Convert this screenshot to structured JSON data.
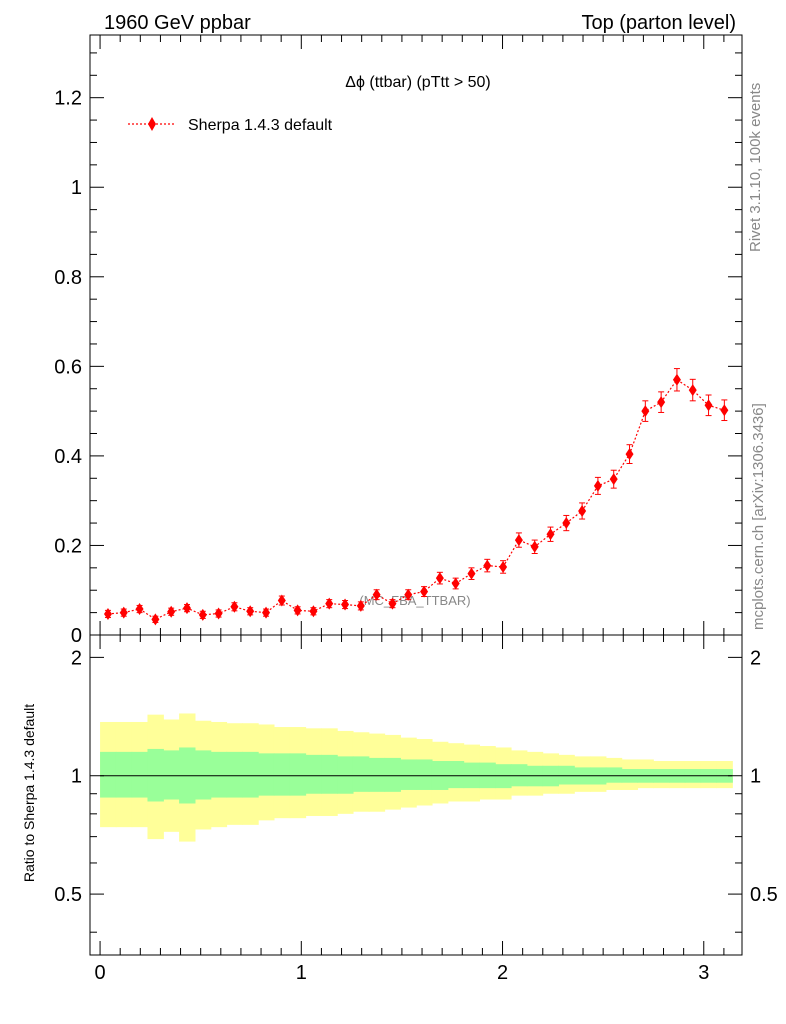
{
  "header": {
    "left_title": "1960 GeV ppbar",
    "right_title": "Top (parton level)"
  },
  "side_labels": {
    "rivet": "Rivet 3.1.10,  100k events",
    "mcplots": "mcplots.cern.ch [arXiv:1306.3436]"
  },
  "chart_data": [
    {
      "type": "scatter",
      "panel": "main",
      "title": "Δϕ (ttbar) (pTtt > 50)",
      "xlabel": "",
      "ylabel": "",
      "xlim": [
        -0.05,
        3.19
      ],
      "ylim": [
        0,
        1.34
      ],
      "grid": false,
      "legend_position": "top-left",
      "watermark": "(MC_FBA_TTBAR)",
      "yticks": [
        {
          "value": 0,
          "label": "0"
        },
        {
          "value": 0.2,
          "label": "0.2"
        },
        {
          "value": 0.4,
          "label": "0.4"
        },
        {
          "value": 0.6,
          "label": "0.6"
        },
        {
          "value": 0.8,
          "label": "0.8"
        },
        {
          "value": 1,
          "label": "1"
        },
        {
          "value": 1.2,
          "label": "1.2"
        }
      ],
      "series": [
        {
          "name": "Sherpa 1.4.3 default",
          "color": "#ff0000",
          "x": [
            0.0393,
            0.1178,
            0.1963,
            0.2749,
            0.3534,
            0.432,
            0.5105,
            0.589,
            0.6676,
            0.7461,
            0.8247,
            0.9032,
            0.9817,
            1.0603,
            1.1388,
            1.2174,
            1.2959,
            1.3744,
            1.453,
            1.5315,
            1.6101,
            1.6886,
            1.7671,
            1.8457,
            1.9242,
            2.0028,
            2.0813,
            2.1598,
            2.2384,
            2.3169,
            2.3955,
            2.474,
            2.5525,
            2.6311,
            2.7096,
            2.7882,
            2.8667,
            2.9452,
            3.0238,
            3.1023
          ],
          "y": [
            0.047,
            0.05,
            0.058,
            0.035,
            0.052,
            0.06,
            0.045,
            0.048,
            0.063,
            0.053,
            0.05,
            0.077,
            0.055,
            0.053,
            0.07,
            0.068,
            0.065,
            0.09,
            0.07,
            0.09,
            0.097,
            0.127,
            0.115,
            0.137,
            0.155,
            0.152,
            0.212,
            0.197,
            0.225,
            0.25,
            0.277,
            0.333,
            0.348,
            0.404,
            0.5,
            0.52,
            0.57,
            0.547,
            0.513,
            0.502
          ],
          "yerr": [
            0.008,
            0.008,
            0.008,
            0.007,
            0.008,
            0.008,
            0.008,
            0.008,
            0.009,
            0.008,
            0.008,
            0.01,
            0.008,
            0.008,
            0.009,
            0.009,
            0.009,
            0.011,
            0.009,
            0.011,
            0.011,
            0.013,
            0.012,
            0.013,
            0.014,
            0.014,
            0.016,
            0.015,
            0.016,
            0.017,
            0.018,
            0.019,
            0.02,
            0.021,
            0.023,
            0.023,
            0.025,
            0.024,
            0.023,
            0.023
          ]
        }
      ]
    },
    {
      "type": "area",
      "panel": "ratio",
      "xlabel": "",
      "ylabel": "Ratio to Sherpa 1.4.3 default",
      "xlim": [
        -0.05,
        3.19
      ],
      "ylim": [
        0.35,
        2.28
      ],
      "log_y": true,
      "grid": false,
      "reference_line": 1,
      "yticks": [
        {
          "value": 0.5,
          "label": "0.5"
        },
        {
          "value": 1,
          "label": "1"
        },
        {
          "value": 2,
          "label": "2"
        }
      ],
      "xticks": [
        {
          "value": 0,
          "label": "0"
        },
        {
          "value": 1,
          "label": "1"
        },
        {
          "value": 2,
          "label": "2"
        },
        {
          "value": 3,
          "label": "3"
        }
      ],
      "bin_edges": [
        0.0,
        0.0785,
        0.1571,
        0.2356,
        0.3142,
        0.3927,
        0.4712,
        0.5498,
        0.6283,
        0.7069,
        0.7854,
        0.8639,
        0.9425,
        1.021,
        1.0996,
        1.1781,
        1.2566,
        1.3352,
        1.4137,
        1.4923,
        1.5708,
        1.6493,
        1.7279,
        1.8064,
        1.885,
        1.9635,
        2.042,
        2.1206,
        2.1991,
        2.2777,
        2.3562,
        2.4347,
        2.5133,
        2.5918,
        2.6704,
        2.7489,
        2.8274,
        2.906,
        2.9845,
        3.0631,
        3.1416
      ],
      "bands": [
        {
          "name": "",
          "color": "#ffff99",
          "lower": [
            0.74,
            0.74,
            0.74,
            0.69,
            0.72,
            0.68,
            0.73,
            0.74,
            0.75,
            0.75,
            0.77,
            0.78,
            0.78,
            0.79,
            0.79,
            0.8,
            0.81,
            0.81,
            0.82,
            0.83,
            0.84,
            0.85,
            0.86,
            0.86,
            0.87,
            0.87,
            0.89,
            0.89,
            0.9,
            0.9,
            0.91,
            0.91,
            0.92,
            0.92,
            0.93,
            0.93,
            0.93,
            0.93,
            0.93,
            0.93
          ],
          "upper": [
            1.37,
            1.37,
            1.37,
            1.43,
            1.39,
            1.44,
            1.38,
            1.37,
            1.36,
            1.36,
            1.35,
            1.33,
            1.33,
            1.32,
            1.32,
            1.3,
            1.29,
            1.28,
            1.27,
            1.25,
            1.24,
            1.22,
            1.21,
            1.2,
            1.19,
            1.18,
            1.16,
            1.15,
            1.14,
            1.13,
            1.12,
            1.12,
            1.11,
            1.1,
            1.1,
            1.09,
            1.09,
            1.09,
            1.09,
            1.09
          ]
        },
        {
          "name": "",
          "color": "#99ff99",
          "lower": [
            0.88,
            0.88,
            0.88,
            0.86,
            0.87,
            0.85,
            0.87,
            0.88,
            0.88,
            0.88,
            0.89,
            0.89,
            0.89,
            0.9,
            0.9,
            0.9,
            0.91,
            0.91,
            0.91,
            0.92,
            0.92,
            0.92,
            0.93,
            0.93,
            0.93,
            0.93,
            0.94,
            0.94,
            0.94,
            0.95,
            0.95,
            0.95,
            0.96,
            0.96,
            0.96,
            0.96,
            0.96,
            0.96,
            0.96,
            0.96
          ],
          "upper": [
            1.15,
            1.15,
            1.15,
            1.17,
            1.16,
            1.18,
            1.16,
            1.15,
            1.15,
            1.15,
            1.14,
            1.14,
            1.14,
            1.13,
            1.13,
            1.12,
            1.12,
            1.11,
            1.11,
            1.1,
            1.1,
            1.09,
            1.09,
            1.08,
            1.08,
            1.07,
            1.07,
            1.06,
            1.06,
            1.06,
            1.05,
            1.05,
            1.05,
            1.04,
            1.04,
            1.04,
            1.04,
            1.04,
            1.04,
            1.04
          ]
        }
      ]
    }
  ]
}
